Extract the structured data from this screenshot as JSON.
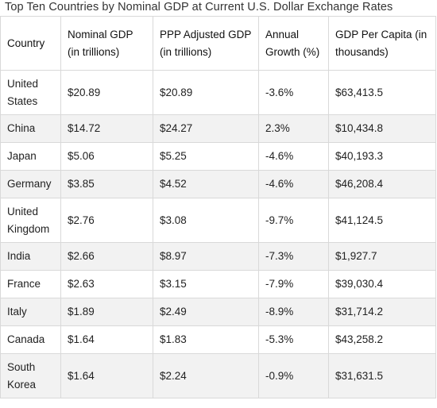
{
  "caption": "Top Ten Countries by Nominal GDP at Current U.S. Dollar Exchange Rates",
  "columns": [
    "Country",
    "Nominal GDP (in trillions)",
    "PPP Adjusted GDP (in trillions)",
    "Annual Growth (%)",
    "GDP Per Capita (in thousands)"
  ],
  "rows": [
    [
      "United States",
      "$20.89",
      "$20.89",
      "-3.6%",
      "$63,413.5"
    ],
    [
      "China",
      "$14.72",
      "$24.27",
      "2.3%",
      "$10,434.8"
    ],
    [
      "Japan",
      "$5.06",
      "$5.25",
      "-4.6%",
      "$40,193.3"
    ],
    [
      "Germany",
      "$3.85",
      "$4.52",
      "-4.6%",
      "$46,208.4"
    ],
    [
      "United Kingdom",
      "$2.76",
      "$3.08",
      "-9.7%",
      "$41,124.5"
    ],
    [
      "India",
      "$2.66",
      "$8.97",
      "-7.3%",
      "$1,927.7"
    ],
    [
      "France",
      "$2.63",
      "$3.15",
      "-7.9%",
      "$39,030.4"
    ],
    [
      "Italy",
      "$1.89",
      "$2.49",
      "-8.9%",
      "$31,714.2"
    ],
    [
      "Canada",
      "$1.64",
      "$1.83",
      "-5.3%",
      "$43,258.2"
    ],
    [
      "South Korea",
      "$1.64",
      "$2.24",
      "-0.9%",
      "$31,631.5"
    ]
  ],
  "row_stripe_color": "#f2f2f2",
  "border_color": "#d9d9d9"
}
